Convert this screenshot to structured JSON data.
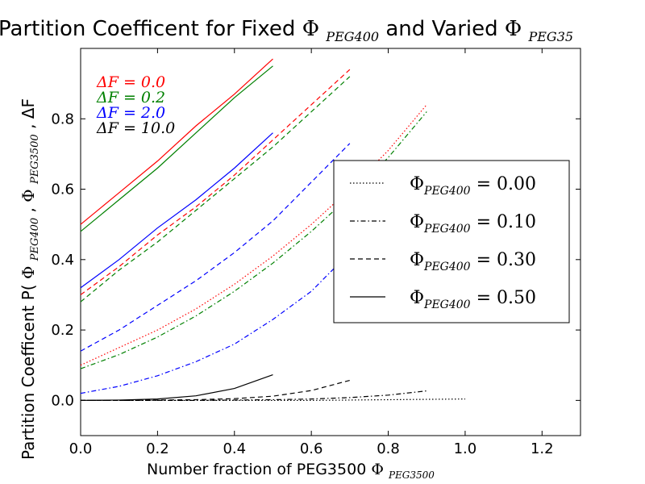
{
  "chart_data": {
    "type": "line",
    "title": {
      "text": "Partition Coefficent for Fixed ",
      "phi": "Φ",
      "sub": "PEG400",
      "mid": " and Varied ",
      "phi2": "Φ",
      "sub2": "PEG35"
    },
    "xlabel": {
      "text": "Number fraction of PEG3500 ",
      "phi": "Φ",
      "sub": "PEG3500"
    },
    "ylabel": {
      "text": "Partition Coefficent  P( ",
      "phi1": "Φ",
      "sub1": "PEG400",
      "comma1": ", ",
      "phi2": "Φ",
      "sub2": "PEG3500",
      "comma2": ", ",
      "tail": "ΔF"
    },
    "xlim": [
      0.0,
      1.3
    ],
    "ylim": [
      -0.1,
      1.0
    ],
    "xticks": [
      "0.0",
      "0.2",
      "0.4",
      "0.6",
      "0.8",
      "1.0",
      "1.2"
    ],
    "yticks": [
      "0.0",
      "0.2",
      "0.4",
      "0.6",
      "0.8"
    ],
    "xtick_values": [
      0.0,
      0.2,
      0.4,
      0.6,
      0.8,
      1.0,
      1.2
    ],
    "ytick_values": [
      0.0,
      0.2,
      0.4,
      0.6,
      0.8
    ],
    "grid": false,
    "colors": {
      "dF0": "#ff0000",
      "dF0.2": "#008000",
      "dF2": "#0000ff",
      "dF10": "#000000"
    },
    "color_labels": [
      {
        "label": "ΔF = 0.0",
        "color": "#ff0000"
      },
      {
        "label": "ΔF = 0.2",
        "color": "#008000"
      },
      {
        "label": "ΔF = 2.0",
        "color": "#0000ff"
      },
      {
        "label": "ΔF = 10.0",
        "color": "#000000"
      }
    ],
    "legend": {
      "location": "center-right",
      "entries": [
        {
          "style": "dotted",
          "phi": "Φ",
          "sub": "PEG400",
          "value": " = 0.00"
        },
        {
          "style": "dashdot",
          "phi": "Φ",
          "sub": "PEG400",
          "value": " = 0.10"
        },
        {
          "style": "dashed",
          "phi": "Φ",
          "sub": "PEG400",
          "value": " = 0.30"
        },
        {
          "style": "solid",
          "phi": "Φ",
          "sub": "PEG400",
          "value": " = 0.50"
        }
      ]
    },
    "series": [
      {
        "style": "solid",
        "color": "#ff0000",
        "x": [
          0.0,
          0.1,
          0.2,
          0.3,
          0.4,
          0.5
        ],
        "y": [
          0.5,
          0.59,
          0.68,
          0.78,
          0.87,
          0.97
        ]
      },
      {
        "style": "solid",
        "color": "#008000",
        "x": [
          0.0,
          0.1,
          0.2,
          0.3,
          0.4,
          0.5
        ],
        "y": [
          0.48,
          0.57,
          0.66,
          0.76,
          0.86,
          0.95
        ]
      },
      {
        "style": "solid",
        "color": "#0000ff",
        "x": [
          0.0,
          0.1,
          0.2,
          0.3,
          0.4,
          0.5
        ],
        "y": [
          0.32,
          0.4,
          0.49,
          0.57,
          0.66,
          0.76
        ]
      },
      {
        "style": "solid",
        "color": "#000000",
        "x": [
          0.0,
          0.1,
          0.2,
          0.3,
          0.4,
          0.5
        ],
        "y": [
          0.0,
          0.001,
          0.004,
          0.013,
          0.034,
          0.073
        ]
      },
      {
        "style": "dashed",
        "color": "#ff0000",
        "x": [
          0.0,
          0.1,
          0.2,
          0.3,
          0.4,
          0.5,
          0.6,
          0.7
        ],
        "y": [
          0.3,
          0.38,
          0.47,
          0.55,
          0.64,
          0.74,
          0.84,
          0.94
        ]
      },
      {
        "style": "dashed",
        "color": "#008000",
        "x": [
          0.0,
          0.1,
          0.2,
          0.3,
          0.4,
          0.5,
          0.6,
          0.7
        ],
        "y": [
          0.28,
          0.37,
          0.45,
          0.54,
          0.63,
          0.72,
          0.82,
          0.92
        ]
      },
      {
        "style": "dashed",
        "color": "#0000ff",
        "x": [
          0.0,
          0.1,
          0.2,
          0.3,
          0.4,
          0.5,
          0.6,
          0.7
        ],
        "y": [
          0.14,
          0.2,
          0.27,
          0.34,
          0.42,
          0.51,
          0.62,
          0.73
        ]
      },
      {
        "style": "dashed",
        "color": "#000000",
        "x": [
          0.0,
          0.1,
          0.2,
          0.3,
          0.4,
          0.5,
          0.6,
          0.7
        ],
        "y": [
          0.0,
          0.0,
          0.001,
          0.002,
          0.005,
          0.012,
          0.028,
          0.057
        ]
      },
      {
        "style": "dotted",
        "color": "#ff0000",
        "x": [
          0.0,
          0.1,
          0.2,
          0.3,
          0.4,
          0.5,
          0.6,
          0.7,
          0.8,
          0.9
        ],
        "y": [
          0.1,
          0.15,
          0.2,
          0.26,
          0.33,
          0.41,
          0.5,
          0.6,
          0.71,
          0.84
        ]
      },
      {
        "style": "dashdot",
        "color": "#008000",
        "x": [
          0.0,
          0.1,
          0.2,
          0.3,
          0.4,
          0.5,
          0.6,
          0.7,
          0.8,
          0.9
        ],
        "y": [
          0.09,
          0.13,
          0.18,
          0.24,
          0.31,
          0.39,
          0.48,
          0.58,
          0.69,
          0.82
        ]
      },
      {
        "style": "dashdot",
        "color": "#0000ff",
        "x": [
          0.0,
          0.1,
          0.2,
          0.3,
          0.4,
          0.5,
          0.6,
          0.7,
          0.8,
          0.9
        ],
        "y": [
          0.02,
          0.04,
          0.07,
          0.11,
          0.16,
          0.23,
          0.31,
          0.42,
          0.54,
          0.68
        ]
      },
      {
        "style": "dashdot",
        "color": "#000000",
        "x": [
          0.0,
          0.1,
          0.2,
          0.3,
          0.4,
          0.5,
          0.6,
          0.7,
          0.8,
          0.9
        ],
        "y": [
          0.0,
          0.0,
          0.0,
          0.0,
          0.001,
          0.002,
          0.004,
          0.008,
          0.015,
          0.027
        ]
      },
      {
        "style": "dotted",
        "color": "#000000",
        "x": [
          0.0,
          0.2,
          0.4,
          0.6,
          0.8,
          1.0
        ],
        "y": [
          0.0,
          0.0,
          0.0,
          0.0,
          0.002,
          0.004
        ]
      }
    ]
  }
}
